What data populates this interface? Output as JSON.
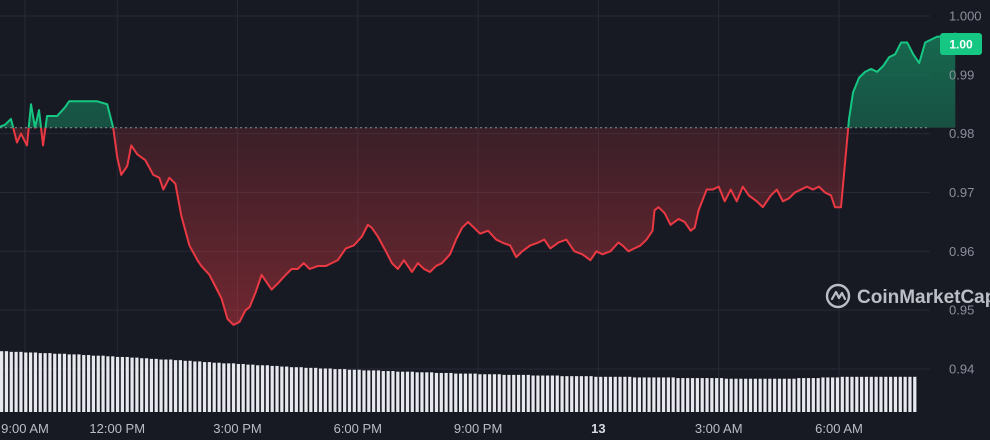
{
  "colors": {
    "background": "#181a23",
    "up": "#16c784",
    "down": "#ea3943",
    "volume": "#e8e9ee",
    "grid": "#262936",
    "baseline": "#8a8f9c"
  },
  "badge": {
    "label": "1.00"
  },
  "watermark": {
    "text": "CoinMarketCap",
    "icon": "coinmarketcap-logo-icon"
  },
  "chart_data": {
    "type": "line",
    "title": "",
    "xlabel": "",
    "ylabel": "",
    "ylim": [
      0.9335,
      1.0
    ],
    "baseline": 0.981,
    "y_ticks": [
      "1.000",
      "0.99",
      "0.98",
      "0.97",
      "0.96",
      "0.95",
      "0.94"
    ],
    "y_tick_values": [
      1.0,
      0.99,
      0.98,
      0.97,
      0.96,
      0.95,
      0.94
    ],
    "x_ticks": [
      {
        "label": "9:00 AM",
        "t": 9.7
      },
      {
        "label": "12:00 PM",
        "t": 12.0
      },
      {
        "label": "3:00 PM",
        "t": 15.0
      },
      {
        "label": "6:00 PM",
        "t": 18.0
      },
      {
        "label": "9:00 PM",
        "t": 21.0
      },
      {
        "label": "13",
        "t": 24.0,
        "bold": true
      },
      {
        "label": "3:00 AM",
        "t": 27.0
      },
      {
        "label": "6:00 AM",
        "t": 30.0
      }
    ],
    "x_range": [
      9.0,
      32.2
    ],
    "series": [
      {
        "values": [
          [
            9.0,
            0.981
          ],
          [
            9.2,
            0.9815
          ],
          [
            9.35,
            0.9825
          ],
          [
            9.5,
            0.9785
          ],
          [
            9.6,
            0.98
          ],
          [
            9.75,
            0.978
          ],
          [
            9.85,
            0.985
          ],
          [
            9.95,
            0.981
          ],
          [
            10.05,
            0.984
          ],
          [
            10.15,
            0.978
          ],
          [
            10.25,
            0.983
          ],
          [
            10.5,
            0.983
          ],
          [
            10.7,
            0.9845
          ],
          [
            10.8,
            0.9855
          ],
          [
            11.0,
            0.9855
          ],
          [
            11.5,
            0.9855
          ],
          [
            11.75,
            0.985
          ],
          [
            11.9,
            0.981
          ],
          [
            12.0,
            0.976
          ],
          [
            12.1,
            0.973
          ],
          [
            12.25,
            0.9745
          ],
          [
            12.35,
            0.978
          ],
          [
            12.5,
            0.9765
          ],
          [
            12.7,
            0.9755
          ],
          [
            12.9,
            0.973
          ],
          [
            13.05,
            0.9725
          ],
          [
            13.15,
            0.9705
          ],
          [
            13.3,
            0.9725
          ],
          [
            13.45,
            0.9715
          ],
          [
            13.6,
            0.966
          ],
          [
            13.8,
            0.961
          ],
          [
            14.0,
            0.9585
          ],
          [
            14.1,
            0.9575
          ],
          [
            14.3,
            0.956
          ],
          [
            14.45,
            0.954
          ],
          [
            14.6,
            0.952
          ],
          [
            14.75,
            0.9485
          ],
          [
            14.9,
            0.9475
          ],
          [
            15.05,
            0.948
          ],
          [
            15.2,
            0.95
          ],
          [
            15.3,
            0.9505
          ],
          [
            15.45,
            0.953
          ],
          [
            15.6,
            0.956
          ],
          [
            15.75,
            0.9545
          ],
          [
            15.85,
            0.9535
          ],
          [
            16.0,
            0.9545
          ],
          [
            16.2,
            0.956
          ],
          [
            16.35,
            0.957
          ],
          [
            16.5,
            0.957
          ],
          [
            16.65,
            0.958
          ],
          [
            16.8,
            0.957
          ],
          [
            17.0,
            0.9575
          ],
          [
            17.2,
            0.9575
          ],
          [
            17.35,
            0.958
          ],
          [
            17.5,
            0.9585
          ],
          [
            17.7,
            0.9605
          ],
          [
            17.9,
            0.961
          ],
          [
            18.1,
            0.9625
          ],
          [
            18.25,
            0.9645
          ],
          [
            18.35,
            0.964
          ],
          [
            18.5,
            0.9625
          ],
          [
            18.7,
            0.96
          ],
          [
            18.85,
            0.958
          ],
          [
            19.0,
            0.957
          ],
          [
            19.15,
            0.9585
          ],
          [
            19.35,
            0.9565
          ],
          [
            19.5,
            0.958
          ],
          [
            19.65,
            0.957
          ],
          [
            19.8,
            0.9565
          ],
          [
            19.95,
            0.9575
          ],
          [
            20.1,
            0.958
          ],
          [
            20.3,
            0.9595
          ],
          [
            20.45,
            0.962
          ],
          [
            20.6,
            0.964
          ],
          [
            20.75,
            0.965
          ],
          [
            20.9,
            0.964
          ],
          [
            21.05,
            0.963
          ],
          [
            21.25,
            0.9635
          ],
          [
            21.45,
            0.962
          ],
          [
            21.6,
            0.9615
          ],
          [
            21.8,
            0.961
          ],
          [
            21.95,
            0.959
          ],
          [
            22.1,
            0.96
          ],
          [
            22.3,
            0.961
          ],
          [
            22.5,
            0.9615
          ],
          [
            22.65,
            0.962
          ],
          [
            22.8,
            0.9605
          ],
          [
            23.0,
            0.9615
          ],
          [
            23.2,
            0.962
          ],
          [
            23.4,
            0.96
          ],
          [
            23.6,
            0.9595
          ],
          [
            23.8,
            0.9585
          ],
          [
            23.95,
            0.96
          ],
          [
            24.1,
            0.9595
          ],
          [
            24.3,
            0.96
          ],
          [
            24.5,
            0.9615
          ],
          [
            24.6,
            0.961
          ],
          [
            24.75,
            0.96
          ],
          [
            24.9,
            0.9605
          ],
          [
            25.05,
            0.961
          ],
          [
            25.2,
            0.962
          ],
          [
            25.35,
            0.9635
          ],
          [
            25.4,
            0.967
          ],
          [
            25.5,
            0.9675
          ],
          [
            25.65,
            0.9665
          ],
          [
            25.8,
            0.9645
          ],
          [
            26.0,
            0.9655
          ],
          [
            26.15,
            0.965
          ],
          [
            26.3,
            0.9635
          ],
          [
            26.4,
            0.964
          ],
          [
            26.5,
            0.967
          ],
          [
            26.7,
            0.9705
          ],
          [
            26.85,
            0.9705
          ],
          [
            27.0,
            0.971
          ],
          [
            27.15,
            0.9685
          ],
          [
            27.3,
            0.9705
          ],
          [
            27.45,
            0.9685
          ],
          [
            27.6,
            0.971
          ],
          [
            27.75,
            0.9695
          ],
          [
            27.95,
            0.9685
          ],
          [
            28.1,
            0.9675
          ],
          [
            28.3,
            0.9695
          ],
          [
            28.45,
            0.9705
          ],
          [
            28.6,
            0.9685
          ],
          [
            28.75,
            0.969
          ],
          [
            28.9,
            0.97
          ],
          [
            29.05,
            0.9705
          ],
          [
            29.2,
            0.971
          ],
          [
            29.35,
            0.9705
          ],
          [
            29.5,
            0.971
          ],
          [
            29.65,
            0.97
          ],
          [
            29.8,
            0.9695
          ],
          [
            29.9,
            0.9675
          ],
          [
            30.05,
            0.9675
          ],
          [
            30.15,
            0.975
          ],
          [
            30.25,
            0.9825
          ],
          [
            30.35,
            0.987
          ],
          [
            30.5,
            0.9895
          ],
          [
            30.65,
            0.9905
          ],
          [
            30.8,
            0.991
          ],
          [
            30.95,
            0.9905
          ],
          [
            31.1,
            0.9915
          ],
          [
            31.25,
            0.993
          ],
          [
            31.4,
            0.9935
          ],
          [
            31.55,
            0.9955
          ],
          [
            31.7,
            0.9955
          ],
          [
            31.85,
            0.9935
          ],
          [
            32.0,
            0.992
          ],
          [
            32.15,
            0.9955
          ],
          [
            32.3,
            0.996
          ],
          [
            32.45,
            0.9965
          ],
          [
            32.6,
            0.9965
          ],
          [
            32.75,
            0.996
          ],
          [
            32.9,
            0.9965
          ]
        ]
      }
    ],
    "volume": {
      "values": [
        0.95,
        0.95,
        0.94,
        0.94,
        0.94,
        0.93,
        0.93,
        0.93,
        0.92,
        0.92,
        0.92,
        0.91,
        0.91,
        0.91,
        0.9,
        0.9,
        0.9,
        0.89,
        0.89,
        0.88,
        0.88,
        0.88,
        0.87,
        0.87,
        0.86,
        0.86,
        0.86,
        0.85,
        0.85,
        0.84,
        0.84,
        0.83,
        0.83,
        0.82,
        0.82,
        0.82,
        0.81,
        0.81,
        0.8,
        0.8,
        0.79,
        0.79,
        0.78,
        0.78,
        0.77,
        0.77,
        0.76,
        0.76,
        0.76,
        0.75,
        0.75,
        0.74,
        0.74,
        0.73,
        0.73,
        0.73,
        0.72,
        0.72,
        0.71,
        0.71,
        0.7,
        0.7,
        0.7,
        0.69,
        0.69,
        0.69,
        0.68,
        0.68,
        0.68,
        0.67,
        0.67,
        0.67,
        0.66,
        0.66,
        0.66,
        0.65,
        0.65,
        0.65,
        0.65,
        0.64,
        0.64,
        0.64,
        0.63,
        0.63,
        0.63,
        0.63,
        0.62,
        0.62,
        0.62,
        0.62,
        0.61,
        0.61,
        0.61,
        0.61,
        0.6,
        0.6,
        0.6,
        0.6,
        0.6,
        0.59,
        0.59,
        0.59,
        0.59,
        0.59,
        0.58,
        0.58,
        0.58,
        0.58,
        0.58,
        0.58,
        0.57,
        0.57,
        0.57,
        0.57,
        0.57,
        0.57,
        0.56,
        0.56,
        0.56,
        0.56,
        0.56,
        0.56,
        0.56,
        0.55,
        0.55,
        0.55,
        0.55,
        0.55,
        0.55,
        0.55,
        0.55,
        0.54,
        0.54,
        0.54,
        0.54,
        0.54,
        0.54,
        0.54,
        0.54,
        0.54,
        0.53,
        0.53,
        0.53,
        0.53,
        0.53,
        0.53,
        0.53,
        0.53,
        0.53,
        0.53,
        0.52,
        0.52,
        0.52,
        0.52,
        0.52,
        0.52,
        0.52,
        0.52,
        0.52,
        0.52,
        0.52,
        0.52,
        0.52,
        0.52,
        0.52,
        0.53,
        0.53,
        0.53,
        0.53,
        0.53,
        0.54,
        0.54,
        0.54,
        0.54,
        0.55,
        0.55,
        0.55,
        0.55,
        0.55,
        0.55,
        0.55,
        0.55,
        0.55,
        0.55,
        0.55,
        0.55,
        0.55,
        0.55,
        0.55,
        0.55
      ]
    }
  }
}
